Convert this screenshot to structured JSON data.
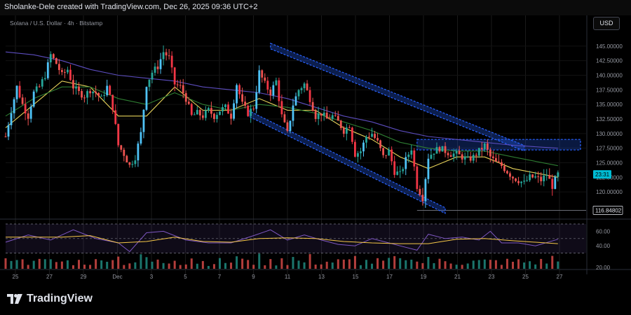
{
  "header": {
    "text": "Sholanke-Dele created with TradingView.com, Dec 26, 2025 09:36 UTC+2"
  },
  "symbol": "Solana / U.S. Dollar · 4h · Bitstamp",
  "currency_button": "USD",
  "brand": {
    "name": "TradingView",
    "icon": "tradingview-logo-icon"
  },
  "colors": {
    "up": "#26a69a",
    "up_bright": "#4fc3f7",
    "down": "#ef5350",
    "down_bright": "#f23645",
    "ma_fast": "#e8d35a",
    "ma_mid": "#2e7d32",
    "ma_slow": "#5c4dbf",
    "channel": "#2962ff",
    "rsi": "#7e57c2"
  },
  "chart_data": {
    "type": "candlestick",
    "x_tick_labels": [
      "25",
      "27",
      "29",
      "Dec",
      "3",
      "5",
      "7",
      "9",
      "11",
      "13",
      "15",
      "17",
      "19",
      "21",
      "23",
      "25",
      "27"
    ],
    "y_tick_labels": [
      "145.00000",
      "142.50000",
      "140.00000",
      "137.50000",
      "135.00000",
      "132.50000",
      "130.00000",
      "127.50000",
      "125.00000",
      "122.50000",
      "120.00000"
    ],
    "ylim": [
      117.5,
      147.5
    ],
    "current_price_label": "23:31",
    "low_marker": 116.84802,
    "low_marker_label": "116.84802",
    "price_path": [
      [
        0,
        129.5
      ],
      [
        2,
        134
      ],
      [
        4,
        138
      ],
      [
        6,
        135
      ],
      [
        8,
        133
      ],
      [
        10,
        137
      ],
      [
        12,
        138
      ],
      [
        14,
        140
      ],
      [
        16,
        143.5
      ],
      [
        18,
        142
      ],
      [
        20,
        140
      ],
      [
        22,
        141
      ],
      [
        24,
        138
      ],
      [
        26,
        137
      ],
      [
        28,
        136.5
      ],
      [
        30,
        137.5
      ],
      [
        32,
        137
      ],
      [
        34,
        136
      ],
      [
        36,
        138
      ],
      [
        38,
        134.5
      ],
      [
        40,
        128
      ],
      [
        42,
        126.5
      ],
      [
        44,
        124.5
      ],
      [
        46,
        126
      ],
      [
        48,
        130
      ],
      [
        50,
        138.5
      ],
      [
        52,
        140.5
      ],
      [
        54,
        141.5
      ],
      [
        56,
        144
      ],
      [
        58,
        143
      ],
      [
        60,
        138.5
      ],
      [
        62,
        138
      ],
      [
        64,
        136
      ],
      [
        66,
        133
      ],
      [
        68,
        133.5
      ],
      [
        70,
        133
      ],
      [
        72,
        134
      ],
      [
        74,
        133
      ],
      [
        76,
        134
      ],
      [
        78,
        134.5
      ],
      [
        80,
        133
      ],
      [
        82,
        138.5
      ],
      [
        84,
        135
      ],
      [
        86,
        133.5
      ],
      [
        88,
        134.5
      ],
      [
        90,
        140.5
      ],
      [
        92,
        138.5
      ],
      [
        94,
        137
      ],
      [
        96,
        139
      ],
      [
        98,
        133
      ],
      [
        100,
        130
      ],
      [
        102,
        135
      ],
      [
        104,
        137.5
      ],
      [
        106,
        138.5
      ],
      [
        108,
        136
      ],
      [
        110,
        133
      ],
      [
        112,
        133.5
      ],
      [
        114,
        132.5
      ],
      [
        116,
        133
      ],
      [
        118,
        132
      ],
      [
        120,
        130.5
      ],
      [
        122,
        131.5
      ],
      [
        124,
        126.5
      ],
      [
        126,
        127
      ],
      [
        128,
        129.5
      ],
      [
        130,
        130
      ],
      [
        132,
        128.5
      ],
      [
        134,
        126
      ],
      [
        136,
        127
      ],
      [
        138,
        123.5
      ],
      [
        140,
        123
      ],
      [
        142,
        125.5
      ],
      [
        144,
        127.5
      ],
      [
        146,
        121
      ],
      [
        148,
        119
      ],
      [
        150,
        126
      ],
      [
        152,
        127
      ],
      [
        154,
        127.5
      ],
      [
        156,
        127
      ],
      [
        158,
        126.5
      ],
      [
        160,
        126.5
      ],
      [
        162,
        126
      ],
      [
        164,
        125.5
      ],
      [
        166,
        126
      ],
      [
        168,
        127
      ],
      [
        170,
        128
      ],
      [
        172,
        126
      ],
      [
        174,
        125
      ],
      [
        176,
        124.5
      ],
      [
        178,
        123.5
      ],
      [
        180,
        122.5
      ],
      [
        182,
        122
      ],
      [
        184,
        121.5
      ],
      [
        186,
        122.5
      ],
      [
        188,
        122.5
      ],
      [
        190,
        122
      ],
      [
        192,
        123
      ],
      [
        194,
        121
      ],
      [
        196,
        123
      ]
    ],
    "moving_averages": [
      {
        "name": "fast",
        "values": [
          [
            0,
            131
          ],
          [
            10,
            135
          ],
          [
            20,
            139
          ],
          [
            30,
            138
          ],
          [
            40,
            133
          ],
          [
            50,
            133
          ],
          [
            60,
            138
          ],
          [
            70,
            134
          ],
          [
            80,
            134
          ],
          [
            90,
            136
          ],
          [
            100,
            134
          ],
          [
            110,
            134
          ],
          [
            120,
            131
          ],
          [
            130,
            129
          ],
          [
            140,
            126
          ],
          [
            150,
            124
          ],
          [
            160,
            126
          ],
          [
            170,
            126
          ],
          [
            180,
            124
          ],
          [
            196,
            122.5
          ]
        ]
      },
      {
        "name": "mid",
        "values": [
          [
            0,
            133
          ],
          [
            10,
            136
          ],
          [
            20,
            138
          ],
          [
            30,
            138
          ],
          [
            40,
            136
          ],
          [
            50,
            135
          ],
          [
            60,
            137
          ],
          [
            70,
            135
          ],
          [
            80,
            134
          ],
          [
            90,
            135
          ],
          [
            100,
            134.5
          ],
          [
            110,
            133.5
          ],
          [
            120,
            132
          ],
          [
            130,
            130.5
          ],
          [
            140,
            128.5
          ],
          [
            150,
            127.5
          ],
          [
            160,
            127
          ],
          [
            170,
            127
          ],
          [
            180,
            126
          ],
          [
            196,
            124.5
          ]
        ]
      },
      {
        "name": "slow",
        "values": [
          [
            0,
            144
          ],
          [
            10,
            143.5
          ],
          [
            20,
            142.5
          ],
          [
            30,
            141
          ],
          [
            40,
            140
          ],
          [
            50,
            139.5
          ],
          [
            60,
            139
          ],
          [
            70,
            138
          ],
          [
            80,
            137.5
          ],
          [
            90,
            137
          ],
          [
            100,
            136
          ],
          [
            110,
            134.5
          ],
          [
            120,
            133
          ],
          [
            130,
            132
          ],
          [
            140,
            130.5
          ],
          [
            150,
            129.5
          ],
          [
            160,
            129
          ],
          [
            170,
            128.5
          ],
          [
            180,
            128
          ],
          [
            196,
            127.5
          ]
        ]
      }
    ],
    "channels": [
      {
        "name": "upper",
        "from": [
          94,
          145
        ],
        "to": [
          184,
          127.5
        ]
      },
      {
        "name": "lower",
        "from": [
          86,
          133.5
        ],
        "to": [
          156,
          116.8
        ]
      }
    ],
    "resistance_zone": {
      "from_x": 146,
      "to_x": 204,
      "top": 129,
      "bottom": 127.2
    },
    "rsi": {
      "ylim": [
        20,
        70
      ],
      "y_tick_labels": [
        "60.00",
        "40.00",
        "20.00"
      ],
      "bands": [
        30,
        50,
        70
      ],
      "values": [
        [
          0,
          45
        ],
        [
          8,
          55
        ],
        [
          16,
          48
        ],
        [
          24,
          62
        ],
        [
          32,
          50
        ],
        [
          40,
          44
        ],
        [
          44,
          32
        ],
        [
          50,
          58
        ],
        [
          56,
          60
        ],
        [
          64,
          48
        ],
        [
          72,
          44
        ],
        [
          80,
          44
        ],
        [
          88,
          54
        ],
        [
          94,
          62
        ],
        [
          100,
          48
        ],
        [
          106,
          55
        ],
        [
          112,
          48
        ],
        [
          118,
          42
        ],
        [
          124,
          40
        ],
        [
          130,
          50
        ],
        [
          136,
          44
        ],
        [
          142,
          38
        ],
        [
          146,
          34
        ],
        [
          150,
          56
        ],
        [
          156,
          50
        ],
        [
          162,
          52
        ],
        [
          168,
          48
        ],
        [
          172,
          60
        ],
        [
          176,
          44
        ],
        [
          182,
          44
        ],
        [
          188,
          40
        ],
        [
          196,
          49
        ]
      ],
      "ma_values": [
        [
          0,
          52
        ],
        [
          20,
          52
        ],
        [
          30,
          54
        ],
        [
          40,
          44
        ],
        [
          50,
          46
        ],
        [
          60,
          52
        ],
        [
          70,
          46
        ],
        [
          80,
          45
        ],
        [
          90,
          50
        ],
        [
          100,
          51
        ],
        [
          110,
          50
        ],
        [
          120,
          46
        ],
        [
          130,
          44
        ],
        [
          140,
          43
        ],
        [
          150,
          43
        ],
        [
          160,
          49
        ],
        [
          170,
          50
        ],
        [
          180,
          47
        ],
        [
          196,
          43
        ]
      ]
    },
    "volume_bars": 100
  }
}
